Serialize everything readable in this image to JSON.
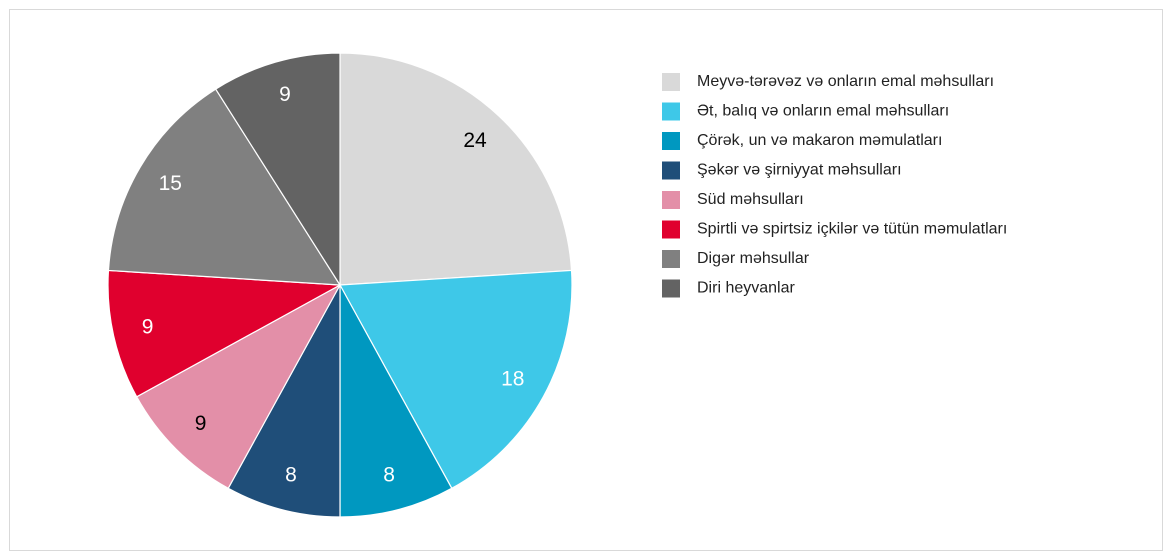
{
  "chart_data": {
    "type": "pie",
    "categories": [
      "Meyvə-tərəvəz və onların emal məhsulları",
      "Ət, balıq və onların emal məhsulları",
      "Çörək, un və makaron məmulatları",
      "Şəkər və şirniyyat məhsulları",
      "Süd məhsulları",
      "Spirtli və spirtsiz içkilər və tütün məmulatları",
      "Digər məhsullar",
      "Diri heyvanlar"
    ],
    "values": [
      24,
      18,
      8,
      8,
      9,
      9,
      15,
      9
    ],
    "colors": [
      "#d9d9d9",
      "#3ec8e8",
      "#0098c0",
      "#1f4e79",
      "#e38fa8",
      "#e0002e",
      "#808080",
      "#636363"
    ],
    "legend": "right"
  }
}
